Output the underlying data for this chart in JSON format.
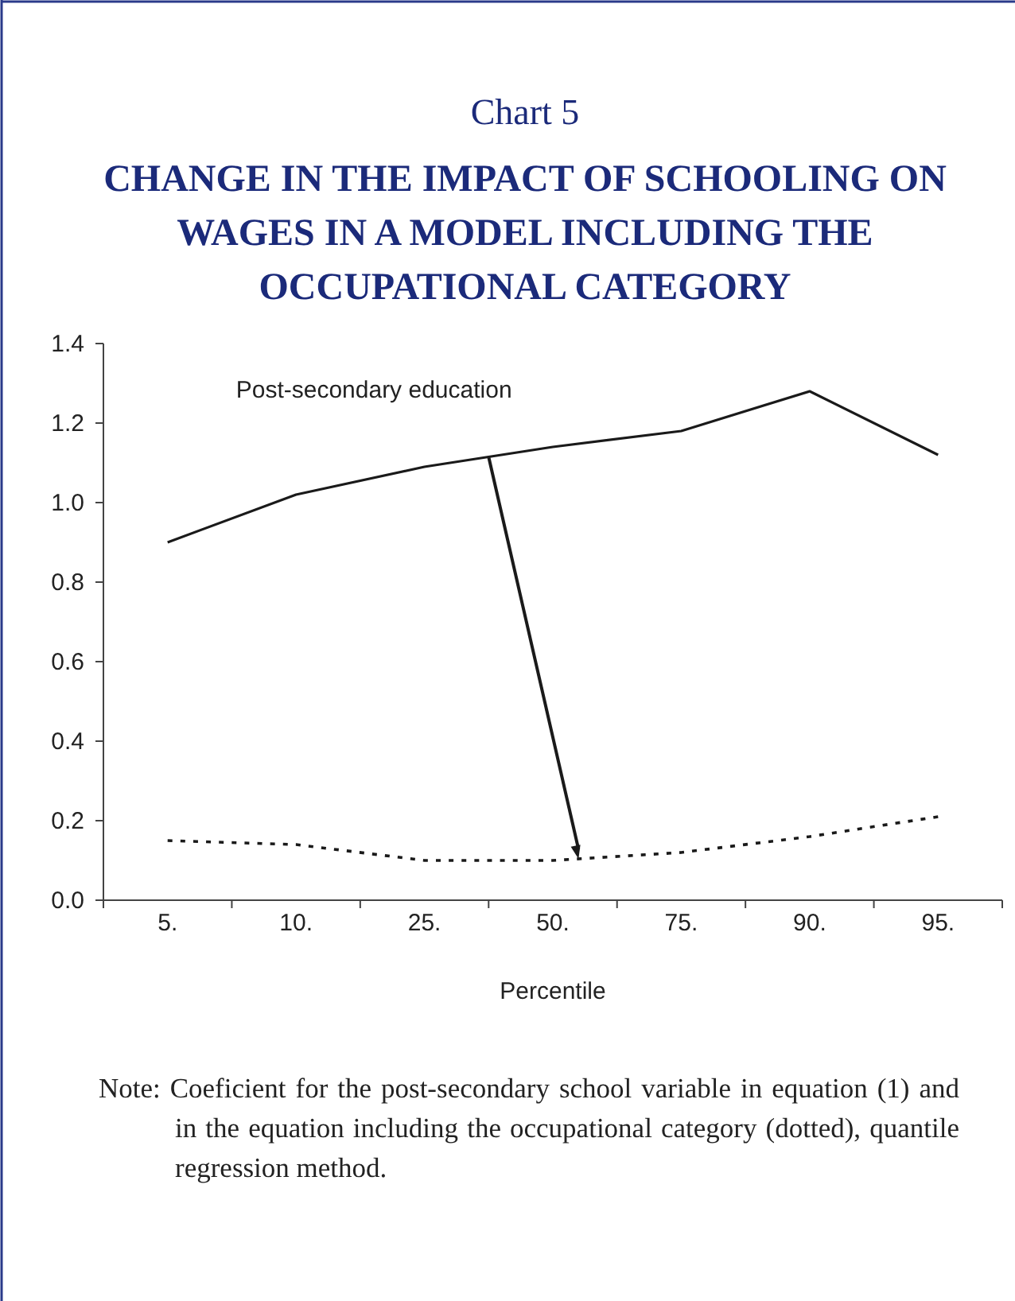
{
  "chart_data": {
    "type": "line",
    "title": "Chart 5",
    "subtitle": "CHANGE IN THE IMPACT OF SCHOOLING ON WAGES IN A MODEL INCLUDING THE OCCUPATIONAL CATEGORY",
    "xlabel": "Percentile",
    "categories": [
      "5.",
      "10.",
      "25.",
      "50.",
      "75.",
      "90.",
      "95."
    ],
    "series": [
      {
        "name": "Post-secondary education",
        "color": "#1a1a1a",
        "line_style": "solid",
        "values": [
          0.9,
          1.02,
          1.09,
          1.14,
          1.18,
          1.28,
          1.12
        ]
      },
      {
        "color": "#1a1a1a",
        "line_style": "dotted",
        "values": [
          0.15,
          0.14,
          0.1,
          0.1,
          0.12,
          0.16,
          0.21
        ]
      }
    ],
    "ylim": [
      0,
      1.4
    ],
    "yticks": [
      {
        "value": 0,
        "label": "0.0"
      },
      {
        "value": 0.2,
        "label": "0.2"
      },
      {
        "value": 0.4,
        "label": "0.4"
      },
      {
        "value": 0.6,
        "label": "0.6"
      },
      {
        "value": 0.8,
        "label": "0.8"
      },
      {
        "value": 1,
        "label": "1.0"
      },
      {
        "value": 1.2,
        "label": "1.2"
      },
      {
        "value": 1.4,
        "label": "1.4"
      }
    ],
    "grid": false,
    "marker": "none",
    "annotations": [
      "Note: Coeficient for the post-secondary school variable in equation (1) and in the equation including the occupational category (dotted), quantile regression method."
    ]
  }
}
